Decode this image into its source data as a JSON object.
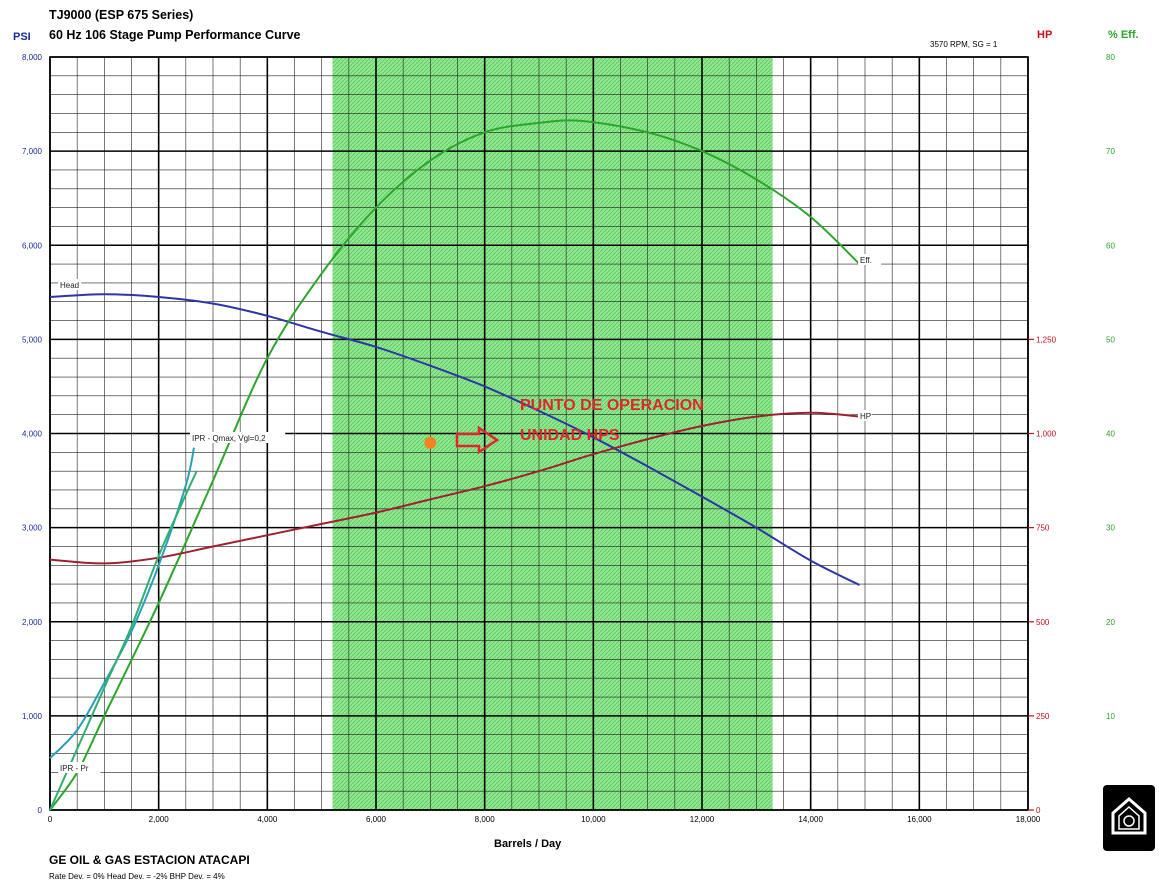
{
  "chart_data": {
    "type": "line",
    "title": "TJ9000 (ESP 675 Series)",
    "subtitle": "60 Hz 106 Stage Pump Performance Curve",
    "conditions": "3570 RPM,  SG = 1",
    "xlabel": "Barrels / Day",
    "xlim": [
      0,
      18000
    ],
    "xticks": [
      "0",
      "2,000",
      "4,000",
      "6,000",
      "8,000",
      "10,000",
      "12,000",
      "14,000",
      "16,000",
      "18,000"
    ],
    "y_left": {
      "label": "PSI",
      "lim": [
        0,
        8000
      ],
      "ticks": [
        "0",
        "1,000",
        "2,000",
        "3,000",
        "4,000",
        "5,000",
        "6,000",
        "7,000",
        "8,000"
      ],
      "color": "#1a2b9a"
    },
    "y_right_hp": {
      "label": "HP",
      "lim": [
        0,
        2000
      ],
      "ticks": [
        "0",
        "250",
        "500",
        "750",
        "1,000",
        "1,250"
      ],
      "color": "#c0101b"
    },
    "y_right_eff": {
      "label": "% Eff.",
      "lim": [
        0,
        80
      ],
      "ticks": [
        "0",
        "10",
        "20",
        "30",
        "40",
        "50",
        "60",
        "70",
        "80"
      ],
      "color": "#2aa62a"
    },
    "grid": true,
    "recommended_range": [
      5200,
      13300
    ],
    "recommended_color": "#8fe88f",
    "series": [
      {
        "name": "Head",
        "axis": "psi",
        "color": "#2d35a8",
        "x": [
          0,
          1000,
          2000,
          3000,
          4000,
          5000,
          6000,
          7000,
          8000,
          9000,
          10000,
          11000,
          12000,
          13000,
          14000,
          14900
        ],
        "y": [
          5450,
          5480,
          5450,
          5380,
          5250,
          5080,
          4920,
          4720,
          4500,
          4240,
          3960,
          3650,
          3330,
          3000,
          2650,
          2390
        ]
      },
      {
        "name": "Eff.",
        "axis": "eff",
        "color": "#2aa62a",
        "x": [
          0,
          500,
          1000,
          2000,
          3000,
          4000,
          5000,
          6000,
          7000,
          8000,
          9000,
          9800,
          11000,
          12000,
          13000,
          14000,
          14900
        ],
        "y": [
          0,
          4,
          10,
          22,
          35,
          48,
          57,
          64,
          69,
          72,
          73,
          73.2,
          72,
          70,
          67,
          63,
          58
        ]
      },
      {
        "name": "HP",
        "axis": "hp",
        "color": "#a02030",
        "x": [
          0,
          1000,
          2000,
          3000,
          4000,
          5000,
          6000,
          7000,
          8000,
          9000,
          10000,
          11000,
          12000,
          13000,
          14000,
          14900
        ],
        "y": [
          665,
          655,
          670,
          700,
          730,
          760,
          790,
          825,
          860,
          900,
          945,
          985,
          1020,
          1045,
          1055,
          1045
        ]
      },
      {
        "name": "IPR - Pr",
        "axis": "psi",
        "color": "#2aa0b8",
        "x": [
          0,
          500,
          1000,
          1500,
          2000,
          2500,
          2650
        ],
        "y": [
          550,
          850,
          1350,
          1900,
          2600,
          3450,
          3850
        ]
      },
      {
        "name": "IPR - Qmax, Vgl=0,2",
        "axis": "psi",
        "color": "#30b070",
        "x": [
          0,
          500,
          1000,
          1500,
          2000,
          2500,
          2700
        ],
        "y": [
          0,
          650,
          1300,
          1950,
          2700,
          3350,
          3600
        ]
      }
    ],
    "labels": {
      "head": "Head",
      "eff": "Eff.",
      "hp": "HP",
      "ipr_pr": "IPR - Pr",
      "ipr_qmax": "IPR - Qmax, Vgl=0,2"
    },
    "annotation": {
      "text1": "PUNTO DE OPERACION",
      "text2": "UNIDAD HPS",
      "color": "#e0262a",
      "point": {
        "x": 7000,
        "y": 3900
      },
      "point_color": "#f5821f"
    }
  },
  "footer": {
    "site": "GE OIL & GAS ESTACION ATACAPI",
    "deviations": "Rate Dev. = 0%   Head Dev. = -2%   BHP Dev. = 4%"
  }
}
